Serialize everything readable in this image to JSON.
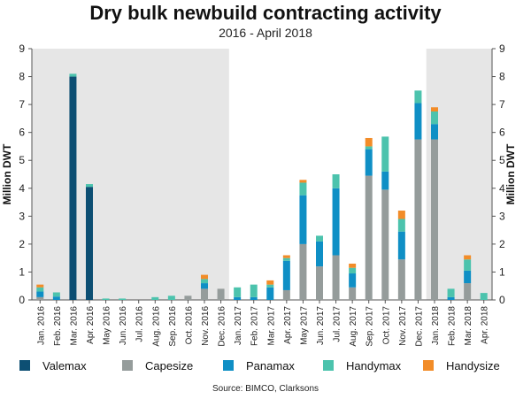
{
  "title": "Dry bulk newbuild contracting activity",
  "subtitle": "2016 - April 2018",
  "source": "Source: BIMCO, Clarksons",
  "chart_data": {
    "type": "bar",
    "stacked": true,
    "title": "Dry bulk newbuild contracting activity",
    "subtitle": "2016 - April 2018",
    "ylabel": "Million DWT",
    "ylabel_right": "Million DWT",
    "ylim": [
      0,
      9
    ],
    "yticks": [
      0,
      1,
      2,
      3,
      4,
      5,
      6,
      7,
      8,
      9
    ],
    "grid": false,
    "legend_position": "bottom",
    "shaded_periods": [
      {
        "from": "Jan. 2016",
        "to": "Dec. 2016",
        "color": "#e6e6e6"
      },
      {
        "from": "Jan. 2018",
        "to": "Apr. 2018",
        "color": "#e6e6e6"
      }
    ],
    "categories": [
      "Jan. 2016",
      "Feb. 2016",
      "Mar. 2016",
      "Apr. 2016",
      "May 2016",
      "Jun. 2016",
      "Jul. 2016",
      "Aug. 2016",
      "Sep. 2016",
      "Oct. 2016",
      "Nov. 2016",
      "Dec. 2016",
      "Jan. 2017",
      "Feb. 2017",
      "Mar. 2017",
      "Apr. 2017",
      "May 2017",
      "Jun. 2017",
      "Jul. 2017",
      "Aug. 2017",
      "Sep. 2017",
      "Oct. 2017",
      "Nov. 2017",
      "Dec. 2017",
      "Jan. 2018",
      "Feb. 2018",
      "Mar. 2018",
      "Apr. 2018"
    ],
    "series": [
      {
        "name": "Valemax",
        "color": "#0d4f73",
        "values": [
          0,
          0,
          8.0,
          4.05,
          0,
          0,
          0,
          0,
          0,
          0,
          0,
          0,
          0,
          0,
          0,
          0,
          0,
          0,
          0,
          0,
          0,
          0,
          0,
          0,
          0,
          0,
          0,
          0
        ]
      },
      {
        "name": "Capesize",
        "color": "#959c9b",
        "values": [
          0.1,
          0,
          0,
          0,
          0,
          0,
          0,
          0,
          0,
          0.15,
          0.4,
          0.4,
          0,
          0,
          0,
          0.35,
          2.0,
          1.2,
          1.6,
          0.45,
          4.45,
          3.95,
          1.45,
          5.75,
          5.75,
          0,
          0.6,
          0
        ]
      },
      {
        "name": "Panamax",
        "color": "#0f8fc5",
        "values": [
          0.2,
          0.12,
          0,
          0,
          0,
          0,
          0,
          0,
          0,
          0,
          0.2,
          0,
          0.1,
          0.1,
          0.45,
          1.05,
          1.75,
          0.9,
          2.4,
          0.5,
          0.95,
          0.65,
          1.0,
          1.3,
          0.55,
          0.1,
          0.45,
          0
        ]
      },
      {
        "name": "Handymax",
        "color": "#4cc3ad",
        "values": [
          0.15,
          0.15,
          0.1,
          0.1,
          0.05,
          0.05,
          0,
          0.1,
          0.15,
          0,
          0.15,
          0,
          0.35,
          0.45,
          0.1,
          0.1,
          0.45,
          0.2,
          0.5,
          0.2,
          0.1,
          1.25,
          0.45,
          0.45,
          0.45,
          0.3,
          0.4,
          0.25
        ]
      },
      {
        "name": "Handysize",
        "color": "#f28c28",
        "values": [
          0.1,
          0,
          0,
          0,
          0,
          0,
          0,
          0,
          0,
          0,
          0.15,
          0,
          0,
          0,
          0.15,
          0.1,
          0.1,
          0,
          0,
          0.15,
          0.3,
          0,
          0.3,
          0,
          0.15,
          0,
          0.15,
          0
        ]
      }
    ]
  }
}
